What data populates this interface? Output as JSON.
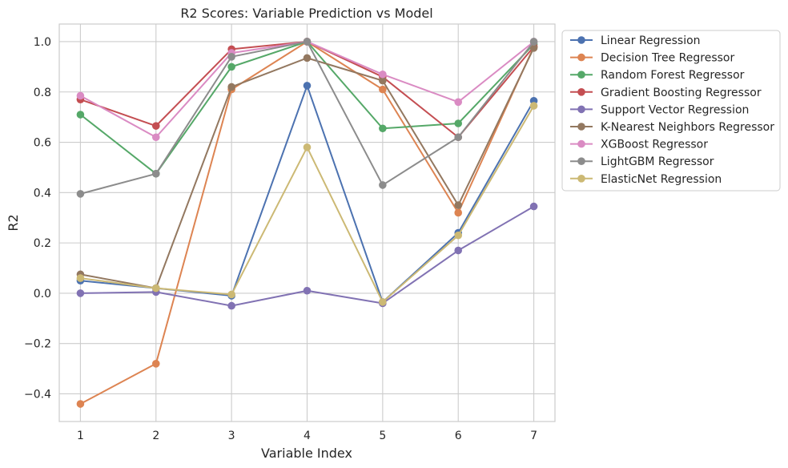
{
  "chart_data": {
    "type": "line",
    "title": "R2 Scores: Variable Prediction vs Model",
    "xlabel": "Variable Index",
    "ylabel": "R2",
    "x": [
      1,
      2,
      3,
      4,
      5,
      6,
      7
    ],
    "xlim": [
      0.72,
      7.28
    ],
    "ylim": [
      -0.51,
      1.07
    ],
    "yticks": [
      -0.4,
      -0.2,
      0.0,
      0.2,
      0.4,
      0.6,
      0.8,
      1.0
    ],
    "ytick_labels": [
      "−0.4",
      "−0.2",
      "0.0",
      "0.2",
      "0.4",
      "0.6",
      "0.8",
      "1.0"
    ],
    "xtick_labels": [
      "1",
      "2",
      "3",
      "4",
      "5",
      "6",
      "7"
    ],
    "grid": true,
    "legend_position": "outside-top-right",
    "series": [
      {
        "name": "Linear Regression",
        "color": "#4c72b0",
        "values": [
          0.05,
          0.02,
          -0.01,
          0.825,
          -0.035,
          0.24,
          0.765
        ]
      },
      {
        "name": "Decision Tree Regressor",
        "color": "#dd8452",
        "values": [
          -0.44,
          -0.28,
          0.81,
          1.0,
          0.81,
          0.32,
          0.98
        ]
      },
      {
        "name": "Random Forest Regressor",
        "color": "#55a868",
        "values": [
          0.71,
          0.475,
          0.9,
          1.0,
          0.655,
          0.675,
          0.99
        ]
      },
      {
        "name": "Gradient Boosting Regressor",
        "color": "#c44e52",
        "values": [
          0.77,
          0.665,
          0.97,
          1.0,
          0.86,
          0.62,
          0.98
        ]
      },
      {
        "name": "Support Vector Regression",
        "color": "#8172b3",
        "values": [
          0.0,
          0.005,
          -0.05,
          0.01,
          -0.04,
          0.17,
          0.345
        ]
      },
      {
        "name": "K-Nearest Neighbors Regressor",
        "color": "#937860",
        "values": [
          0.075,
          0.02,
          0.82,
          0.935,
          0.845,
          0.35,
          0.975
        ]
      },
      {
        "name": "XGBoost Regressor",
        "color": "#da8bc3",
        "values": [
          0.785,
          0.62,
          0.955,
          1.0,
          0.87,
          0.76,
          1.0
        ]
      },
      {
        "name": "LightGBM Regressor",
        "color": "#8c8c8c",
        "values": [
          0.395,
          0.475,
          0.94,
          1.0,
          0.43,
          0.62,
          1.0
        ]
      },
      {
        "name": "ElasticNet Regression",
        "color": "#ccb974",
        "values": [
          0.06,
          0.02,
          -0.005,
          0.58,
          -0.035,
          0.23,
          0.745
        ]
      }
    ]
  }
}
